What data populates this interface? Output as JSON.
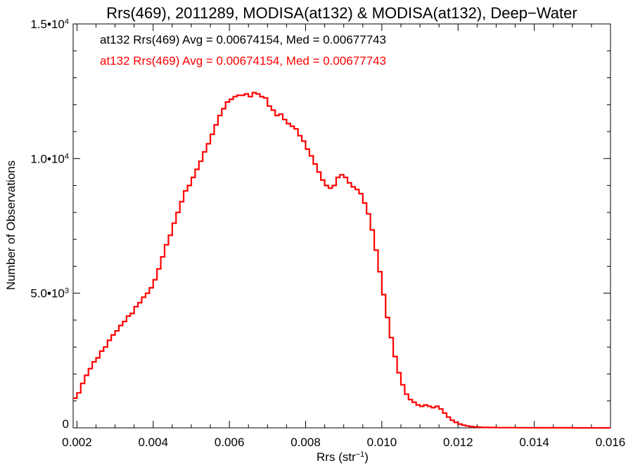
{
  "chart_data": {
    "type": "line",
    "title": "Rrs(469), 2011289, MODISA(at132) & MODISA(at132), Deep−Water",
    "xlabel_main": "Rrs (str",
    "xlabel_sup": "−1",
    "xlabel_end": ")",
    "ylabel": "Number of Observations",
    "xlim": [
      0.0019,
      0.016
    ],
    "ylim": [
      0,
      15000
    ],
    "x_ticks": [
      {
        "value": 0.002,
        "label": "0.002"
      },
      {
        "value": 0.004,
        "label": "0.004"
      },
      {
        "value": 0.006,
        "label": "0.006"
      },
      {
        "value": 0.008,
        "label": "0.008"
      },
      {
        "value": 0.01,
        "label": "0.010"
      },
      {
        "value": 0.012,
        "label": "0.012"
      },
      {
        "value": 0.014,
        "label": "0.014"
      },
      {
        "value": 0.016,
        "label": "0.016"
      }
    ],
    "y_ticks": [
      {
        "value": 0,
        "base": "0",
        "exp": ""
      },
      {
        "value": 5000,
        "base": "5.0•10",
        "exp": "3"
      },
      {
        "value": 10000,
        "base": "1.0•10",
        "exp": "4"
      },
      {
        "value": 15000,
        "base": "1.5•10",
        "exp": "4"
      }
    ],
    "annotations": [
      {
        "text": "at132 Rrs(469) Avg = 0.00674154, Med = 0.00677743",
        "color": "#000000"
      },
      {
        "text": "at132 Rrs(469) Avg = 0.00674154, Med = 0.00677743",
        "color": "#ff0000"
      }
    ],
    "series": [
      {
        "color": "#ff0000",
        "points": [
          [
            0.0019,
            1100
          ],
          [
            0.002,
            1300
          ],
          [
            0.0021,
            1650
          ],
          [
            0.0022,
            1950
          ],
          [
            0.0023,
            2200
          ],
          [
            0.0024,
            2450
          ],
          [
            0.0025,
            2600
          ],
          [
            0.0026,
            2850
          ],
          [
            0.0027,
            3000
          ],
          [
            0.0028,
            3250
          ],
          [
            0.0029,
            3450
          ],
          [
            0.003,
            3600
          ],
          [
            0.0031,
            3800
          ],
          [
            0.0032,
            3950
          ],
          [
            0.0033,
            4150
          ],
          [
            0.0034,
            4250
          ],
          [
            0.0035,
            4500
          ],
          [
            0.0036,
            4650
          ],
          [
            0.0037,
            4850
          ],
          [
            0.0038,
            5000
          ],
          [
            0.0039,
            5200
          ],
          [
            0.004,
            5500
          ],
          [
            0.0041,
            5900
          ],
          [
            0.0042,
            6350
          ],
          [
            0.0043,
            6800
          ],
          [
            0.0044,
            7150
          ],
          [
            0.0045,
            7600
          ],
          [
            0.0046,
            8000
          ],
          [
            0.0047,
            8400
          ],
          [
            0.0048,
            8800
          ],
          [
            0.0049,
            9000
          ],
          [
            0.005,
            9300
          ],
          [
            0.0051,
            9600
          ],
          [
            0.0052,
            9900
          ],
          [
            0.0053,
            10250
          ],
          [
            0.0054,
            10550
          ],
          [
            0.0055,
            10900
          ],
          [
            0.0056,
            11250
          ],
          [
            0.0057,
            11600
          ],
          [
            0.0058,
            11850
          ],
          [
            0.0059,
            12100
          ],
          [
            0.006,
            12200
          ],
          [
            0.0061,
            12300
          ],
          [
            0.0062,
            12350
          ],
          [
            0.0063,
            12350
          ],
          [
            0.0064,
            12400
          ],
          [
            0.0065,
            12300
          ],
          [
            0.0066,
            12450
          ],
          [
            0.0067,
            12400
          ],
          [
            0.0068,
            12300
          ],
          [
            0.0069,
            12250
          ],
          [
            0.007,
            11950
          ],
          [
            0.0071,
            11800
          ],
          [
            0.0072,
            11600
          ],
          [
            0.0073,
            11650
          ],
          [
            0.0074,
            11450
          ],
          [
            0.0075,
            11300
          ],
          [
            0.0076,
            11200
          ],
          [
            0.0077,
            11100
          ],
          [
            0.0078,
            10850
          ],
          [
            0.0079,
            10650
          ],
          [
            0.008,
            10350
          ],
          [
            0.0081,
            10100
          ],
          [
            0.0082,
            9800
          ],
          [
            0.0083,
            9500
          ],
          [
            0.0084,
            9200
          ],
          [
            0.0085,
            9000
          ],
          [
            0.0086,
            8900
          ],
          [
            0.0087,
            9000
          ],
          [
            0.0088,
            9300
          ],
          [
            0.0089,
            9400
          ],
          [
            0.009,
            9300
          ],
          [
            0.0091,
            9100
          ],
          [
            0.0092,
            8950
          ],
          [
            0.0093,
            8850
          ],
          [
            0.0094,
            8700
          ],
          [
            0.0095,
            8350
          ],
          [
            0.0096,
            7950
          ],
          [
            0.0097,
            7350
          ],
          [
            0.0098,
            6600
          ],
          [
            0.0099,
            5800
          ],
          [
            0.01,
            4950
          ],
          [
            0.0101,
            4100
          ],
          [
            0.0102,
            3350
          ],
          [
            0.0103,
            2650
          ],
          [
            0.0104,
            2050
          ],
          [
            0.0105,
            1600
          ],
          [
            0.0106,
            1250
          ],
          [
            0.0107,
            1050
          ],
          [
            0.0108,
            950
          ],
          [
            0.0109,
            850
          ],
          [
            0.011,
            800
          ],
          [
            0.0111,
            850
          ],
          [
            0.0112,
            800
          ],
          [
            0.0113,
            750
          ],
          [
            0.0114,
            800
          ],
          [
            0.0115,
            700
          ],
          [
            0.0116,
            550
          ],
          [
            0.0117,
            400
          ],
          [
            0.0118,
            280
          ],
          [
            0.0119,
            200
          ],
          [
            0.012,
            140
          ],
          [
            0.0121,
            100
          ],
          [
            0.0122,
            70
          ],
          [
            0.0123,
            50
          ],
          [
            0.0124,
            35
          ],
          [
            0.0125,
            25
          ],
          [
            0.0126,
            18
          ],
          [
            0.0128,
            12
          ],
          [
            0.013,
            8
          ],
          [
            0.0135,
            5
          ],
          [
            0.014,
            3
          ],
          [
            0.0145,
            2
          ],
          [
            0.015,
            1
          ],
          [
            0.0155,
            1
          ],
          [
            0.016,
            0
          ]
        ]
      }
    ]
  }
}
